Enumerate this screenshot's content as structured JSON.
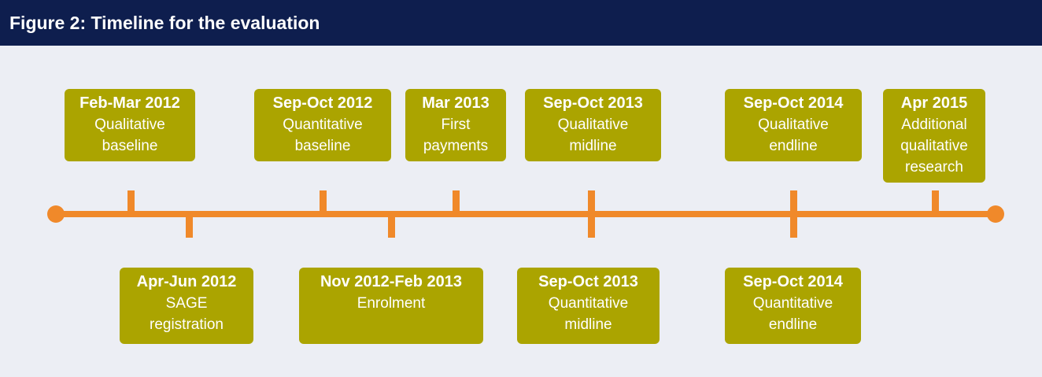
{
  "title": "Figure 2: Timeline for the evaluation",
  "events_above": [
    {
      "date": "Feb-Mar 2012",
      "lines": [
        "Qualitative",
        "baseline"
      ]
    },
    {
      "date": "Sep-Oct 2012",
      "lines": [
        "Quantitative",
        "baseline"
      ]
    },
    {
      "date": "Mar 2013",
      "lines": [
        "First",
        "payments"
      ]
    },
    {
      "date": "Sep-Oct 2013",
      "lines": [
        "Qualitative",
        "midline"
      ]
    },
    {
      "date": "Sep-Oct 2014",
      "lines": [
        "Qualitative",
        "endline"
      ]
    },
    {
      "date": "Apr 2015",
      "lines": [
        "Additional",
        "qualitative",
        "research"
      ]
    }
  ],
  "events_below": [
    {
      "date": "Apr-Jun 2012",
      "lines": [
        "SAGE",
        "registration"
      ]
    },
    {
      "date": "Nov 2012-Feb 2013",
      "lines": [
        "Enrolment"
      ]
    },
    {
      "date": "Sep-Oct 2013",
      "lines": [
        "Quantitative",
        "midline"
      ]
    },
    {
      "date": "Sep-Oct 2014",
      "lines": [
        "Quantitative",
        "endline"
      ]
    }
  ]
}
